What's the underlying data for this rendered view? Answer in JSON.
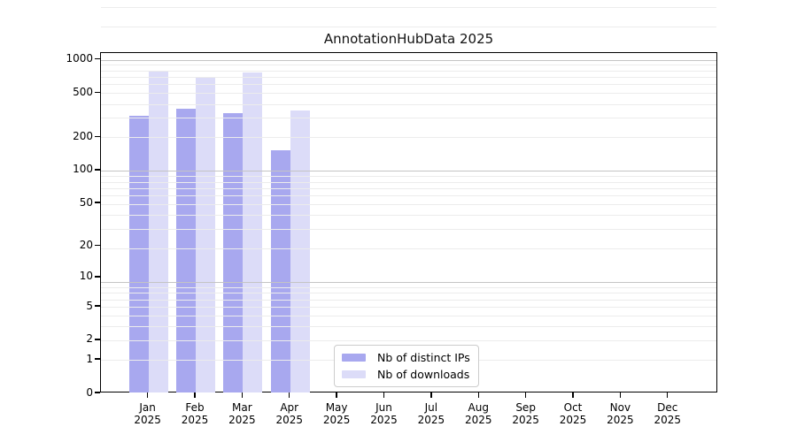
{
  "title": "AnnotationHubData 2025",
  "chart_data": {
    "type": "bar",
    "title": "AnnotationHubData 2025",
    "xlabel": "",
    "ylabel": "",
    "y_scale": "log1p",
    "ylim": [
      0,
      1000
    ],
    "y_ticks": [
      0,
      1,
      2,
      5,
      10,
      20,
      50,
      100,
      200,
      500,
      1000
    ],
    "grid": "both",
    "legend_position": "bottom-center",
    "months": [
      "Jan",
      "Feb",
      "Mar",
      "Apr",
      "May",
      "Jun",
      "Jul",
      "Aug",
      "Sep",
      "Oct",
      "Nov",
      "Dec"
    ],
    "year": "2025",
    "categories": [
      "Jan 2025",
      "Feb 2025",
      "Mar 2025",
      "Apr 2025",
      "May 2025",
      "Jun 2025",
      "Jul 2025",
      "Aug 2025",
      "Sep 2025",
      "Oct 2025",
      "Nov 2025",
      "Dec 2025"
    ],
    "series": [
      {
        "name": "Nb of distinct IPs",
        "color": "#a8a8ef",
        "values": [
          315,
          360,
          330,
          152,
          0,
          0,
          0,
          0,
          0,
          0,
          0,
          0
        ]
      },
      {
        "name": "Nb of downloads",
        "color": "#dcdcf8",
        "values": [
          800,
          700,
          760,
          350,
          0,
          0,
          0,
          0,
          0,
          0,
          0,
          0
        ]
      }
    ]
  },
  "colors": {
    "axis": "#000000",
    "grid_major": "#c4c4c4",
    "grid_minor": "#ececec",
    "background": "#ffffff"
  }
}
